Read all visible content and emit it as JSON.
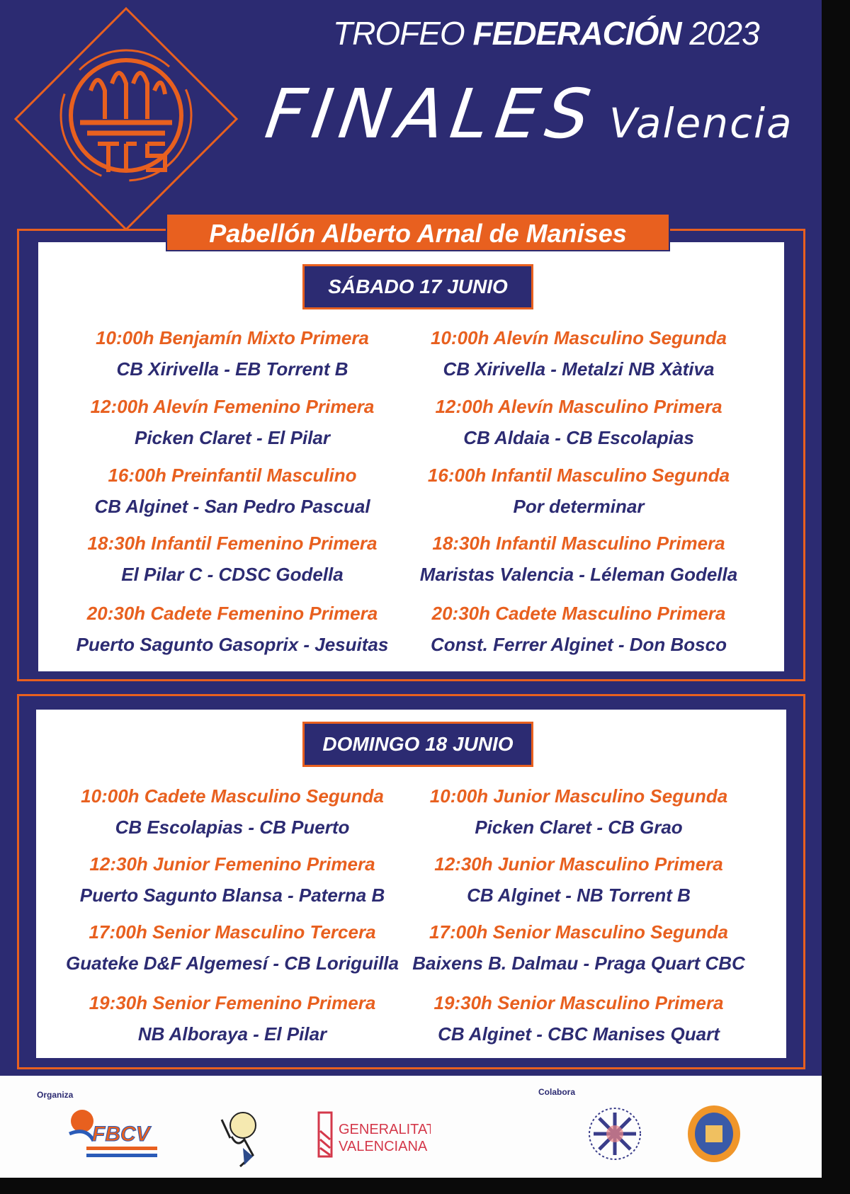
{
  "header": {
    "trofeo": "TROFEO",
    "federacion": "FEDERACIÓN",
    "year": "2023",
    "finales": "FINALES",
    "city": "Valencia",
    "venue": "Pabellón Alberto Arnal de Manises"
  },
  "colors": {
    "navy": "#2c2b72",
    "orange": "#e8601f",
    "white": "#ffffff"
  },
  "days": [
    {
      "label": "SÁBADO 17 JUNIO",
      "matches": [
        {
          "title": "10:00h Benjamín Mixto Primera",
          "teams": "CB Xirivella - EB Torrent B"
        },
        {
          "title": "10:00h Alevín Masculino Segunda",
          "teams": "CB Xirivella - Metalzi NB Xàtiva"
        },
        {
          "title": "12:00h Alevín Femenino Primera",
          "teams": "Picken Claret - El Pilar"
        },
        {
          "title": "12:00h Alevín Masculino Primera",
          "teams": "CB Aldaia - CB Escolapias"
        },
        {
          "title": "16:00h Preinfantil Masculino",
          "teams": "CB Alginet - San Pedro Pascual"
        },
        {
          "title": "16:00h Infantil Masculino Segunda",
          "teams": "Por determinar"
        },
        {
          "title": "18:30h Infantil Femenino Primera",
          "teams": "El Pilar C - CDSC Godella"
        },
        {
          "title": "18:30h Infantil Masculino Primera",
          "teams": "Maristas Valencia - Léleman Godella"
        },
        {
          "title": "20:30h Cadete Femenino Primera",
          "teams": "Puerto Sagunto Gasoprix - Jesuitas"
        },
        {
          "title": "20:30h Cadete Masculino Primera",
          "teams": "Const. Ferrer Alginet - Don Bosco"
        }
      ]
    },
    {
      "label": "DOMINGO 18 JUNIO",
      "matches": [
        {
          "title": "10:00h Cadete Masculino Segunda",
          "teams": "CB Escolapias - CB Puerto"
        },
        {
          "title": "10:00h Junior Masculino Segunda",
          "teams": "Picken Claret - CB Grao"
        },
        {
          "title": "12:30h Junior Femenino Primera",
          "teams": "Puerto Sagunto Blansa - Paterna B"
        },
        {
          "title": "12:30h Junior Masculino Primera",
          "teams": "CB Alginet - NB Torrent B"
        },
        {
          "title": "17:00h Senior Masculino Tercera",
          "teams": "Guateke D&F Algemesí - CB Loriguilla"
        },
        {
          "title": "17:00h Senior Masculino Segunda",
          "teams": "Baixens B. Dalmau - Praga Quart CBC"
        },
        {
          "title": "19:30h Senior Femenino Primera",
          "teams": "NB Alboraya - El Pilar"
        },
        {
          "title": "19:30h Senior Masculino Primera",
          "teams": "CB Alginet - CBC Manises Quart"
        }
      ]
    }
  ],
  "footer": {
    "organiza": "Organiza",
    "colabora": "Colabora",
    "logos": {
      "fbcv": "FBCV",
      "generalitat_line1": "GENERALITAT",
      "generalitat_line2": "VALENCIANA"
    },
    "icons": [
      "fbcv-logo",
      "mascot-logo",
      "generalitat-logo",
      "manises-seal-logo",
      "orange-seal-logo",
      "trofeo-basket-logo"
    ]
  }
}
